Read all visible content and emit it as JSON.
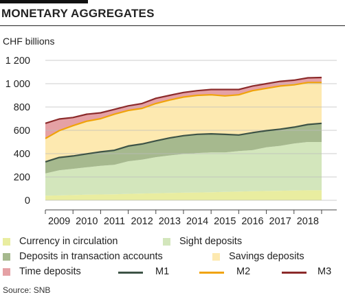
{
  "header": {
    "title": "MONETARY AGGREGATES",
    "unit_label": "CHF billions",
    "source": "Source: SNB"
  },
  "chart_data": {
    "type": "area",
    "title": "MONETARY AGGREGATES",
    "ylabel": "CHF billions",
    "xlabel": "",
    "ylim": [
      0,
      1200
    ],
    "xlim": [
      2008.5,
      2018.75
    ],
    "yticks": [
      0,
      200,
      400,
      600,
      800,
      1000,
      1200
    ],
    "ytick_labels": [
      "0",
      "200",
      "400",
      "600",
      "800",
      "1 000",
      "1 200"
    ],
    "xtick_labels": [
      "2009",
      "2010",
      "2011",
      "2012",
      "2013",
      "2014",
      "2015",
      "2016",
      "2017",
      "2018"
    ],
    "grid": "horizontal",
    "legend": "bottom",
    "x": [
      2008.5,
      2009.0,
      2009.5,
      2010.0,
      2010.5,
      2011.0,
      2011.5,
      2012.0,
      2012.5,
      2013.0,
      2013.5,
      2014.0,
      2014.5,
      2015.0,
      2015.5,
      2016.0,
      2016.5,
      2017.0,
      2017.5,
      2018.0,
      2018.5
    ],
    "stacked_series": [
      {
        "name": "Currency in circulation",
        "color": "#e9eda0",
        "values": [
          40,
          42,
          45,
          48,
          50,
          52,
          55,
          58,
          60,
          63,
          65,
          67,
          69,
          72,
          75,
          78,
          80,
          82,
          84,
          86,
          86
        ]
      },
      {
        "name": "Sight deposits",
        "color": "#d3e6bc",
        "values": [
          190,
          215,
          225,
          235,
          245,
          252,
          280,
          290,
          310,
          322,
          332,
          338,
          341,
          338,
          347,
          352,
          375,
          385,
          403,
          414,
          414
        ]
      },
      {
        "name": "Deposits in transaction accounts",
        "color": "#a6b98e",
        "values": [
          100,
          110,
          110,
          115,
          120,
          125,
          130,
          135,
          140,
          150,
          157,
          161,
          160,
          155,
          138,
          150,
          142,
          143,
          140,
          150,
          160
        ]
      },
      {
        "name": "Savings deposits",
        "color": "#fde9b0",
        "values": [
          200,
          230,
          260,
          280,
          285,
          310,
          305,
          305,
          320,
          325,
          331,
          334,
          335,
          330,
          345,
          360,
          363,
          370,
          363,
          360,
          350
        ]
      },
      {
        "name": "Time deposits",
        "color": "#e5a1a5",
        "values": [
          130,
          100,
          70,
          60,
          50,
          41,
          40,
          42,
          45,
          40,
          40,
          40,
          45,
          55,
          45,
          40,
          40,
          40,
          40,
          40,
          43
        ]
      }
    ],
    "series": [
      {
        "name": "M1",
        "color": "#3d5346",
        "values": [
          330,
          367,
          380,
          398,
          415,
          429,
          465,
          483,
          510,
          535,
          554,
          566,
          570,
          565,
          560,
          580,
          597,
          610,
          627,
          650,
          660
        ]
      },
      {
        "name": "M2",
        "color": "#f0a30a",
        "values": [
          530,
          597,
          640,
          678,
          700,
          739,
          770,
          788,
          830,
          860,
          885,
          900,
          905,
          895,
          905,
          940,
          960,
          980,
          990,
          1010,
          1010
        ]
      },
      {
        "name": "M3",
        "color": "#8b2a2a",
        "values": [
          660,
          697,
          710,
          738,
          750,
          780,
          810,
          830,
          875,
          900,
          925,
          940,
          950,
          950,
          950,
          980,
          1000,
          1020,
          1030,
          1050,
          1053
        ]
      }
    ]
  }
}
